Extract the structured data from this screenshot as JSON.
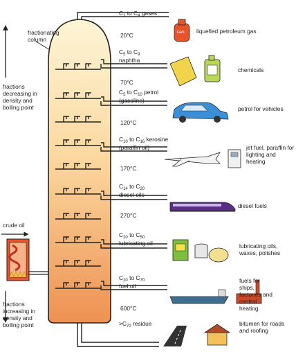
{
  "column_label": "fractionating column",
  "left_top_label": "fractions decreasing in density and boiling point",
  "left_bottom_label": "fractions increasing in density and boiling point",
  "crude_oil_label": "crude oil",
  "fractions": [
    {
      "name_main": "C",
      "n1": "1",
      "mid": " to C",
      "n2": "4",
      "tail": " gases",
      "temp": "20°C",
      "use": "liquefied petroleum gas",
      "icon": "gas-cylinder-icon"
    },
    {
      "name_main": "C",
      "n1": "5",
      "mid": " to C",
      "n2": "9",
      "tail": "",
      "line2": "naphtha",
      "temp": "70°C",
      "use": "chemicals",
      "icon": "chemical-containers-icon"
    },
    {
      "name_main": "C",
      "n1": "5",
      "mid": " to C",
      "n2": "10",
      "tail": " petrol",
      "line2": "(gasoline)",
      "temp": "120°C",
      "use": "petrol for vehicles",
      "icon": "car-icon"
    },
    {
      "name_main": "C",
      "n1": "10",
      "mid": " to C",
      "n2": "16",
      "tail": " kerosine",
      "line2": "(paraffin oil)",
      "temp": "170°C",
      "use": "jet fuel, paraffin for lighting and heating",
      "icon": "jet-plane-icon"
    },
    {
      "name_main": "C",
      "n1": "14",
      "mid": " to C",
      "n2": "20",
      "tail": "",
      "line2": "diesel oils",
      "temp": "270°C",
      "use": "diesel fuels",
      "icon": "train-icon"
    },
    {
      "name_main": "C",
      "n1": "20",
      "mid": " to C",
      "n2": "50",
      "tail": "",
      "line2": "lubricating oil",
      "temp": "",
      "use": "lubricating oils, waxes, polishes",
      "icon": "oil-can-icon"
    },
    {
      "name_main": "C",
      "n1": "20",
      "mid": " to C",
      "n2": "70",
      "tail": "",
      "line2": "fuel oil",
      "temp": "600°C",
      "use": "fuels for ships, factories and central heating",
      "icon": "ship-factory-icon"
    },
    {
      "name_main": ">C",
      "n1": "70",
      "mid": "",
      "n2": "",
      "tail": " residue",
      "temp": "",
      "use": "bitumen for roads and roofing",
      "icon": "road-house-icon"
    }
  ],
  "colors": {
    "column_top": "#fbf0c9",
    "column_bottom": "#ef9a58",
    "furnace": "#e8542a",
    "flame": "#f6c343"
  }
}
